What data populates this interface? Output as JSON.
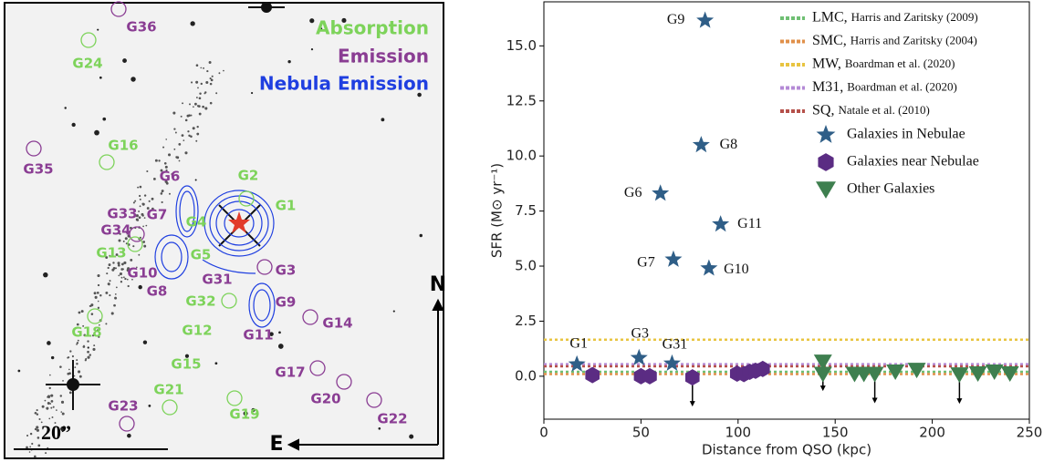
{
  "image_panel": {
    "legend": {
      "absorption": "Absorption",
      "emission": "Emission",
      "nebula": "Nebula Emission"
    },
    "colors": {
      "absorption": "#7dd35a",
      "emission": "#8a3d93",
      "nebula": "#1f3fe0"
    },
    "scale_label": "20”",
    "north": "N",
    "east": "E",
    "galaxies": [
      {
        "label": "G36",
        "kind": "emission"
      },
      {
        "label": "G24",
        "kind": "absorption"
      },
      {
        "label": "G16",
        "kind": "absorption"
      },
      {
        "label": "G35",
        "kind": "emission"
      },
      {
        "label": "G6",
        "kind": "emission"
      },
      {
        "label": "G2",
        "kind": "absorption"
      },
      {
        "label": "G1",
        "kind": "absorption"
      },
      {
        "label": "G33",
        "kind": "emission"
      },
      {
        "label": "G7",
        "kind": "emission"
      },
      {
        "label": "G4",
        "kind": "absorption"
      },
      {
        "label": "G34",
        "kind": "emission"
      },
      {
        "label": "G13",
        "kind": "absorption"
      },
      {
        "label": "G5",
        "kind": "absorption"
      },
      {
        "label": "G10",
        "kind": "emission"
      },
      {
        "label": "G3",
        "kind": "emission"
      },
      {
        "label": "G31",
        "kind": "emission"
      },
      {
        "label": "G8",
        "kind": "emission"
      },
      {
        "label": "G32",
        "kind": "absorption"
      },
      {
        "label": "G9",
        "kind": "emission"
      },
      {
        "label": "G14",
        "kind": "emission"
      },
      {
        "label": "G18",
        "kind": "absorption"
      },
      {
        "label": "G12",
        "kind": "absorption"
      },
      {
        "label": "G11",
        "kind": "emission"
      },
      {
        "label": "G15",
        "kind": "absorption"
      },
      {
        "label": "G17",
        "kind": "emission"
      },
      {
        "label": "G21",
        "kind": "absorption"
      },
      {
        "label": "G20",
        "kind": "emission"
      },
      {
        "label": "G19",
        "kind": "absorption"
      },
      {
        "label": "G23",
        "kind": "emission"
      },
      {
        "label": "G22",
        "kind": "emission"
      }
    ]
  },
  "chart_data": {
    "type": "scatter",
    "x_label": "Distance from QSO (kpc)",
    "y_label": "SFR (M⊙ yr⁻¹)",
    "xlim": [
      0,
      250
    ],
    "ylim": [
      -1.95,
      17.0
    ],
    "xticks": [
      0,
      50,
      100,
      150,
      200,
      250
    ],
    "yticks": [
      {
        "value": 0,
        "label": "0.0"
      },
      {
        "value": 2.5,
        "label": "2.5"
      },
      {
        "value": 5,
        "label": "5.0"
      },
      {
        "value": 7.5,
        "label": "7.5"
      },
      {
        "value": 10,
        "label": "10.0"
      },
      {
        "value": 12.5,
        "label": "12.5"
      },
      {
        "value": 15,
        "label": "15.0"
      }
    ],
    "reference_lines": [
      {
        "name": "LMC,",
        "note": "Harris and Zaritsky (2009)",
        "color": "#6fbf73",
        "value": 0.2
      },
      {
        "name": "SMC,",
        "note": "Harris and Zaritsky (2004)",
        "color": "#e0904a",
        "value": 0.1
      },
      {
        "name": "MW,",
        "note": "Boardman et al. (2020)",
        "color": "#e8c440",
        "value": 1.66
      },
      {
        "name": "M31,",
        "note": "Boardman et al. (2020)",
        "color": "#b48ad6",
        "value": 0.55
      },
      {
        "name": "SQ,",
        "note": "Natale et al. (2010)",
        "color": "#b5504a",
        "value": 0.45
      }
    ],
    "series": [
      {
        "name": "Galaxies in Nebulae",
        "marker": "star",
        "color": "#2f5e87",
        "x": [
          17,
          49,
          66,
          60,
          66.7,
          85,
          91,
          81,
          83
        ],
        "values": [
          0.54,
          0.83,
          0.58,
          8.3,
          5.3,
          4.9,
          6.9,
          10.5,
          16.15
        ],
        "labels": [
          "G1",
          "G3",
          "G31",
          "G6",
          "G7",
          "G10",
          "G11",
          "G8",
          "G9"
        ],
        "upper_limits": [
          false,
          false,
          false,
          false,
          false,
          false,
          false,
          false,
          false
        ]
      },
      {
        "name": "Galaxies near Nebulae",
        "marker": "hexagon",
        "color": "#5b2c83",
        "x": [
          25,
          50,
          54.5,
          76.5,
          99.5,
          103,
          106,
          109,
          112.7
        ],
        "values": [
          0.05,
          0.0,
          0.0,
          -0.05,
          0.12,
          0.1,
          0.2,
          0.25,
          0.33
        ],
        "upper_limits": [
          false,
          false,
          false,
          true,
          false,
          false,
          false,
          false,
          false
        ]
      },
      {
        "name": "Other Galaxies",
        "marker": "triangle",
        "color": "#3e7f4f",
        "x": [
          143.7,
          143.7,
          160,
          164.8,
          170.4,
          181,
          192,
          214,
          223.5,
          232,
          240
        ],
        "values": [
          0.65,
          0.1,
          0.1,
          0.1,
          0.1,
          0.2,
          0.28,
          0.07,
          0.12,
          0.2,
          0.12
        ],
        "upper_limits": [
          true,
          false,
          false,
          false,
          true,
          false,
          false,
          true,
          false,
          false,
          false
        ]
      }
    ]
  }
}
